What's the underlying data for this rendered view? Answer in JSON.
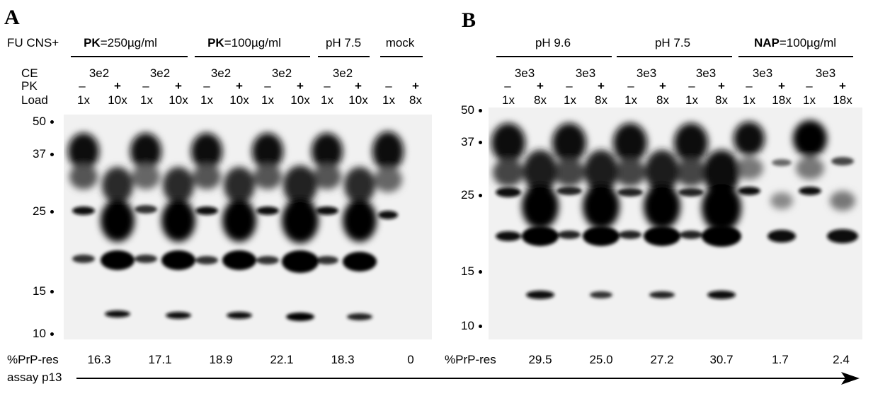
{
  "panel_a": {
    "letter": "A",
    "header_prefix": "FU CNS+",
    "groups": [
      {
        "prefix": "PK",
        "suffix": "=250µg/ml"
      },
      {
        "prefix": "PK",
        "suffix": "=100µg/ml"
      },
      {
        "prefix": "",
        "suffix": "pH 7.5"
      },
      {
        "prefix": "",
        "suffix": "mock"
      }
    ],
    "row_labels": [
      "CE",
      "PK",
      "Load"
    ],
    "ce_values": [
      "3e2",
      "3e2",
      "3e2",
      "3e2",
      "3e2"
    ],
    "pk_values": [
      "–",
      "+",
      "–",
      "+",
      "–",
      "+",
      "–",
      "+",
      "–",
      "+",
      "–",
      "+"
    ],
    "load_values": [
      "1x",
      "10x",
      "1x",
      "10x",
      "1x",
      "10x",
      "1x",
      "10x",
      "1x",
      "10x",
      "1x",
      "8x"
    ],
    "mw_markers": [
      "50",
      "37",
      "25",
      "15",
      "10"
    ],
    "prp_label": "%PrP-res",
    "prp_values": [
      "16.3",
      "17.1",
      "18.9",
      "22.1",
      "18.3",
      "0"
    ]
  },
  "panel_b": {
    "letter": "B",
    "groups": [
      {
        "prefix": "",
        "suffix": "pH 9.6"
      },
      {
        "prefix": "",
        "suffix": "pH 7.5"
      },
      {
        "prefix": "NAP",
        "suffix": "=100µg/ml"
      }
    ],
    "ce_values": [
      "3e3",
      "3e3",
      "3e3",
      "3e3",
      "3e3",
      "3e3"
    ],
    "pk_values": [
      "–",
      "+",
      "–",
      "+",
      "–",
      "+",
      "–",
      "+",
      "–",
      "+",
      "–",
      "+"
    ],
    "load_values": [
      "1x",
      "8x",
      "1x",
      "8x",
      "1x",
      "8x",
      "1x",
      "8x",
      "1x",
      "18x",
      "1x",
      "18x"
    ],
    "mw_markers": [
      "50",
      "37",
      "25",
      "15",
      "10"
    ],
    "prp_label": "%PrP-res",
    "prp_values": [
      "29.5",
      "25.0",
      "27.2",
      "30.7",
      "1.7",
      "2.4"
    ]
  },
  "footer": {
    "assay_label": "assay p13"
  }
}
